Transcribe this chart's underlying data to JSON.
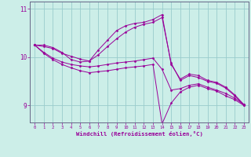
{
  "xlabel": "Windchill (Refroidissement éolien,°C)",
  "background_color": "#cceee8",
  "line_color": "#990099",
  "grid_color": "#99cccc",
  "axis_color": "#666688",
  "xlim": [
    -0.5,
    23.5
  ],
  "ylim": [
    8.65,
    11.15
  ],
  "yticks": [
    9,
    10,
    11
  ],
  "xticks": [
    0,
    1,
    2,
    3,
    4,
    5,
    6,
    7,
    8,
    9,
    10,
    11,
    12,
    13,
    14,
    15,
    16,
    17,
    18,
    19,
    20,
    21,
    22,
    23
  ],
  "series": [
    {
      "x": [
        0,
        1,
        2,
        3,
        4,
        5,
        6,
        7,
        8,
        9,
        10,
        11,
        12,
        13,
        14,
        15,
        16,
        17,
        18,
        19,
        20,
        21,
        22,
        23
      ],
      "y": [
        10.25,
        10.25,
        10.2,
        10.1,
        9.95,
        9.9,
        9.92,
        10.15,
        10.35,
        10.55,
        10.65,
        10.7,
        10.72,
        10.78,
        10.88,
        9.85,
        9.55,
        9.65,
        9.62,
        9.52,
        9.48,
        9.38,
        9.22,
        9.02
      ]
    },
    {
      "x": [
        0,
        1,
        2,
        3,
        4,
        5,
        6,
        7,
        8,
        9,
        10,
        11,
        12,
        13,
        14,
        15,
        16,
        17,
        18,
        19,
        20,
        21,
        22,
        23
      ],
      "y": [
        10.25,
        10.22,
        10.18,
        10.08,
        10.02,
        9.96,
        9.92,
        10.05,
        10.22,
        10.38,
        10.52,
        10.62,
        10.68,
        10.72,
        10.82,
        9.88,
        9.52,
        9.62,
        9.58,
        9.5,
        9.46,
        9.36,
        9.2,
        9.0
      ]
    },
    {
      "x": [
        0,
        1,
        2,
        3,
        4,
        5,
        6,
        7,
        8,
        9,
        10,
        11,
        12,
        13,
        14,
        15,
        16,
        17,
        18,
        19,
        20,
        21,
        22,
        23
      ],
      "y": [
        10.25,
        10.1,
        9.98,
        9.9,
        9.85,
        9.82,
        9.8,
        9.82,
        9.85,
        9.88,
        9.9,
        9.92,
        9.95,
        9.98,
        9.75,
        9.32,
        9.35,
        9.42,
        9.45,
        9.38,
        9.32,
        9.25,
        9.15,
        9.02
      ]
    },
    {
      "x": [
        0,
        1,
        2,
        3,
        4,
        5,
        6,
        7,
        8,
        9,
        10,
        11,
        12,
        13,
        14,
        15,
        16,
        17,
        18,
        19,
        20,
        21,
        22,
        23
      ],
      "y": [
        10.25,
        10.08,
        9.95,
        9.85,
        9.78,
        9.72,
        9.68,
        9.7,
        9.72,
        9.75,
        9.78,
        9.8,
        9.82,
        9.85,
        8.62,
        9.05,
        9.28,
        9.38,
        9.42,
        9.35,
        9.3,
        9.2,
        9.12,
        9.0
      ]
    }
  ]
}
